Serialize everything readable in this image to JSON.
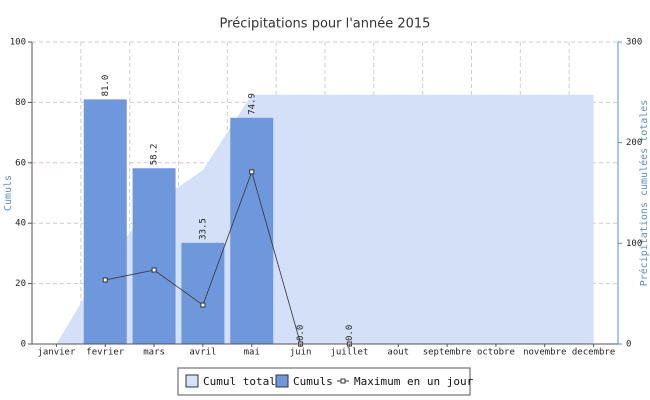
{
  "chart_data": {
    "type": "bar",
    "title": "Précipitations pour l'année 2015",
    "ylabel": "Cumuls",
    "y2label": "Précipitations cumulées totales",
    "categories": [
      "janvier",
      "fevrier",
      "mars",
      "avril",
      "mai",
      "juin",
      "juillet",
      "aout",
      "septembre",
      "octobre",
      "novembre",
      "decembre"
    ],
    "ylim": [
      0,
      100
    ],
    "yticks": [
      0,
      20,
      40,
      60,
      80,
      100
    ],
    "y2lim": [
      0,
      300
    ],
    "y2ticks": [
      0,
      100,
      200,
      300
    ],
    "grid": true,
    "series": [
      {
        "name": "Cumul total",
        "type": "area",
        "axis": "y2",
        "color": "#d3e0f7",
        "values": [
          0,
          81,
          139.2,
          172.7,
          247.6,
          247.6,
          247.6,
          247.6,
          247.6,
          247.6,
          247.6,
          247.6
        ]
      },
      {
        "name": "Cumuls",
        "type": "bar",
        "color": "#6f97dc",
        "values": [
          null,
          81,
          58.2,
          33.5,
          74.9,
          0,
          0,
          null,
          null,
          null,
          null,
          null
        ],
        "value_labels": [
          null,
          "81.0",
          "58.2",
          "33.5",
          "74.9",
          "0.0",
          "0.0",
          null,
          null,
          null,
          null,
          null
        ]
      },
      {
        "name": "Maximum en un jour",
        "type": "line",
        "color": "#333333",
        "values": [
          null,
          21.2,
          24.5,
          12.9,
          57,
          0,
          0,
          null,
          null,
          null,
          null,
          null
        ]
      }
    ]
  }
}
